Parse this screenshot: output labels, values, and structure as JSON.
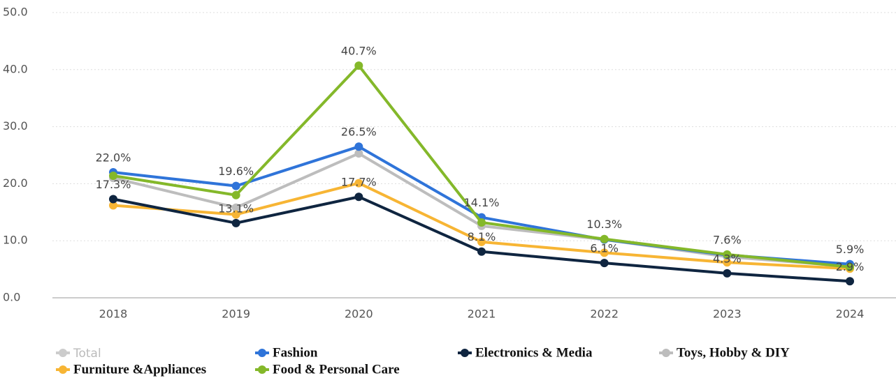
{
  "chart_data": {
    "type": "line",
    "categories": [
      "2018",
      "2019",
      "2020",
      "2021",
      "2022",
      "2023",
      "2024"
    ],
    "ylim": [
      0,
      50
    ],
    "yticks": [
      {
        "value": 0,
        "label": "0.0"
      },
      {
        "value": 10,
        "label": "10.0"
      },
      {
        "value": 20,
        "label": "20.0"
      },
      {
        "value": 30,
        "label": "30.0"
      },
      {
        "value": 40,
        "label": "40.0"
      },
      {
        "value": 50,
        "label": "50.0"
      }
    ],
    "grid": true,
    "legend_inactive": [
      {
        "name": "Total",
        "color": "#cccccc"
      }
    ],
    "series": [
      {
        "name": "Fashion",
        "color": "#2f74d9",
        "values": [
          22.0,
          19.6,
          26.5,
          14.1,
          10.2,
          7.5,
          5.9
        ],
        "value_labels": [
          "22.0%",
          "19.6%",
          "26.5%",
          "14.1%",
          null,
          null,
          "5.9%"
        ]
      },
      {
        "name": "Electronics & Media",
        "color": "#0f2540",
        "values": [
          17.3,
          13.1,
          17.7,
          8.1,
          6.1,
          4.3,
          2.9
        ],
        "value_labels": [
          "17.3%",
          "13.1%",
          "17.7%",
          "8.1%",
          "6.1%",
          "4.3%",
          "2.9%"
        ]
      },
      {
        "name": "Toys, Hobby & DIY",
        "color": "#bdbdbd",
        "values": [
          21.0,
          15.8,
          25.3,
          12.6,
          10.2,
          7.2,
          5.5
        ]
      },
      {
        "name": "Furniture &Appliances",
        "color": "#f7b534",
        "values": [
          16.2,
          14.6,
          20.1,
          9.8,
          7.9,
          6.2,
          5.1
        ]
      },
      {
        "name": "Food & Personal Care",
        "color": "#84b82a",
        "values": [
          21.4,
          18.0,
          40.7,
          13.2,
          10.3,
          7.6,
          5.4
        ],
        "value_labels": [
          null,
          null,
          "40.7%",
          null,
          "10.3%",
          "7.6%",
          null
        ]
      }
    ]
  }
}
